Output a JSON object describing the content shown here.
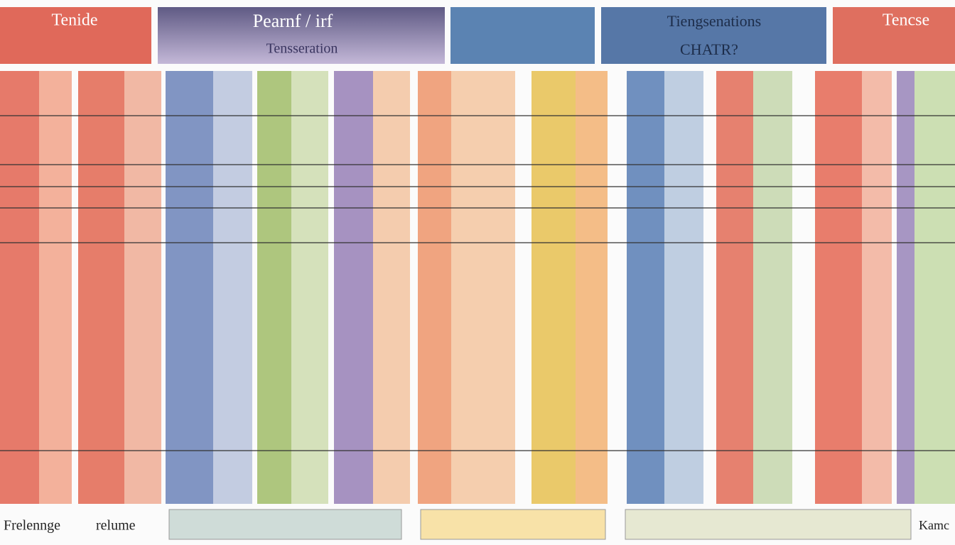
{
  "header": {
    "boxes": [
      {
        "lines": [
          "Tenide"
        ]
      },
      {
        "lines": [
          "Pearnf / irf",
          "Tensseration"
        ]
      },
      {
        "lines": []
      },
      {
        "lines": [
          "Tiengsenations",
          "CHATR?"
        ]
      },
      {
        "lines": [
          "Tencse"
        ]
      }
    ]
  },
  "footer": {
    "labels": [
      "Frelennge",
      "relume",
      "Kamc"
    ]
  }
}
